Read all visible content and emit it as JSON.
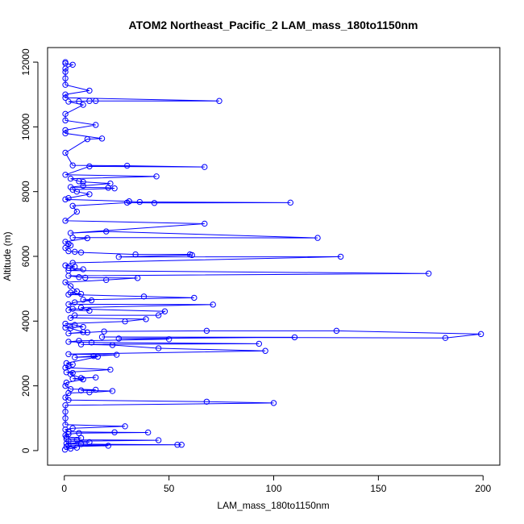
{
  "chart_data": {
    "type": "line",
    "title": "ATOM2 Northeast_Pacific_2 LAM_mass_180to1150nm",
    "xlabel": "LAM_mass_180to1150nm",
    "ylabel": "Altitude (m)",
    "xlim": [
      -8,
      208
    ],
    "ylim": [
      -450,
      12450
    ],
    "x_ticks": [
      0,
      50,
      100,
      150,
      200
    ],
    "x_tick_labels": [
      "0",
      "50",
      "100",
      "150",
      "200"
    ],
    "y_ticks": [
      0,
      2000,
      4000,
      6000,
      8000,
      10000,
      12000
    ],
    "y_tick_labels": [
      "0",
      "2000",
      "4000",
      "6000",
      "8000",
      "10000",
      "12000"
    ],
    "grid": false,
    "legend": "none",
    "colors": {
      "series": "#0000ff",
      "axis": "#000000"
    },
    "marker": "open-circle",
    "series": [
      {
        "name": "",
        "points": [
          [
            0.3,
            30
          ],
          [
            3,
            60
          ],
          [
            6,
            90
          ],
          [
            1,
            120
          ],
          [
            21,
            150
          ],
          [
            2,
            170
          ],
          [
            54,
            180
          ],
          [
            56,
            180
          ],
          [
            8,
            200
          ],
          [
            1,
            220
          ],
          [
            12,
            260
          ],
          [
            2,
            290
          ],
          [
            45,
            320
          ],
          [
            6,
            330
          ],
          [
            1,
            360
          ],
          [
            8,
            390
          ],
          [
            1,
            420
          ],
          [
            0.5,
            470
          ],
          [
            2,
            510
          ],
          [
            7,
            540
          ],
          [
            40,
            560
          ],
          [
            24,
            565
          ],
          [
            2,
            580
          ],
          [
            0.5,
            650
          ],
          [
            4,
            690
          ],
          [
            29,
            750
          ],
          [
            0.5,
            800
          ],
          [
            0.5,
            1000
          ],
          [
            0.5,
            1200
          ],
          [
            0.5,
            1400
          ],
          [
            100,
            1470
          ],
          [
            68,
            1510
          ],
          [
            2,
            1560
          ],
          [
            0.5,
            1640
          ],
          [
            2,
            1780
          ],
          [
            12,
            1800
          ],
          [
            23,
            1840
          ],
          [
            8,
            1860
          ],
          [
            15,
            1880
          ],
          [
            3,
            1900
          ],
          [
            0.5,
            2000
          ],
          [
            1,
            2100
          ],
          [
            9,
            2200
          ],
          [
            4,
            2220
          ],
          [
            15,
            2260
          ],
          [
            8,
            2240
          ],
          [
            3,
            2360
          ],
          [
            4,
            2400
          ],
          [
            1,
            2420
          ],
          [
            22,
            2500
          ],
          [
            0.5,
            2560
          ],
          [
            2,
            2600
          ],
          [
            4,
            2660
          ],
          [
            1,
            2700
          ],
          [
            16,
            2900
          ],
          [
            5,
            2880
          ],
          [
            14,
            2920
          ],
          [
            25,
            2960
          ],
          [
            2,
            2980
          ],
          [
            96,
            3080
          ],
          [
            45,
            3160
          ],
          [
            23,
            3260
          ],
          [
            8,
            3280
          ],
          [
            93,
            3300
          ],
          [
            13,
            3340
          ],
          [
            2,
            3360
          ],
          [
            7,
            3390
          ],
          [
            50,
            3440
          ],
          [
            26,
            3460
          ],
          [
            110,
            3500
          ],
          [
            18,
            3510
          ],
          [
            182,
            3480
          ],
          [
            199,
            3600
          ],
          [
            130,
            3700
          ],
          [
            68,
            3700
          ],
          [
            19,
            3680
          ],
          [
            11,
            3650
          ],
          [
            2,
            3620
          ],
          [
            9,
            3660
          ],
          [
            3,
            3780
          ],
          [
            0.5,
            3800
          ],
          [
            9,
            3820
          ],
          [
            5,
            3880
          ],
          [
            0.5,
            3920
          ],
          [
            29,
            3990
          ],
          [
            39,
            4060
          ],
          [
            3,
            4100
          ],
          [
            5,
            4180
          ],
          [
            45,
            4180
          ],
          [
            48,
            4300
          ],
          [
            4,
            4380
          ],
          [
            2,
            4340
          ],
          [
            12,
            4320
          ],
          [
            8,
            4420
          ],
          [
            71,
            4510
          ],
          [
            2,
            4520
          ],
          [
            5,
            4580
          ],
          [
            13,
            4640
          ],
          [
            9,
            4660
          ],
          [
            62,
            4720
          ],
          [
            38,
            4760
          ],
          [
            2,
            4820
          ],
          [
            8,
            4840
          ],
          [
            3,
            4880
          ],
          [
            6,
            4920
          ],
          [
            3,
            5080
          ],
          [
            0.5,
            5200
          ],
          [
            20,
            5270
          ],
          [
            35,
            5330
          ],
          [
            10,
            5340
          ],
          [
            7,
            5360
          ],
          [
            2,
            5400
          ],
          [
            174,
            5470
          ],
          [
            2,
            5560
          ],
          [
            9,
            5600
          ],
          [
            2,
            5640
          ],
          [
            5,
            5680
          ],
          [
            0.5,
            5720
          ],
          [
            4,
            5800
          ],
          [
            132,
            5990
          ],
          [
            26,
            5980
          ],
          [
            61,
            6040
          ],
          [
            60,
            6060
          ],
          [
            34,
            6060
          ],
          [
            8,
            6120
          ],
          [
            5,
            6140
          ],
          [
            2,
            6160
          ],
          [
            0.5,
            6260
          ],
          [
            3,
            6340
          ],
          [
            2,
            6380
          ],
          [
            0.5,
            6450
          ],
          [
            11,
            6560
          ],
          [
            4,
            6580
          ],
          [
            121,
            6570
          ],
          [
            20,
            6770
          ],
          [
            3,
            6720
          ],
          [
            67,
            7010
          ],
          [
            0.5,
            7100
          ],
          [
            6,
            7380
          ],
          [
            4,
            7560
          ],
          [
            30,
            7660
          ],
          [
            43,
            7650
          ],
          [
            108,
            7660
          ],
          [
            36,
            7680
          ],
          [
            31,
            7700
          ],
          [
            0.5,
            7760
          ],
          [
            2,
            7800
          ],
          [
            12,
            7920
          ],
          [
            6,
            8000
          ],
          [
            4,
            8060
          ],
          [
            24,
            8100
          ],
          [
            21,
            8120
          ],
          [
            3,
            8140
          ],
          [
            9,
            8180
          ],
          [
            22,
            8250
          ],
          [
            9,
            8300
          ],
          [
            7,
            8320
          ],
          [
            3,
            8400
          ],
          [
            44,
            8470
          ],
          [
            0.5,
            8520
          ],
          [
            12,
            8780
          ],
          [
            67,
            8760
          ],
          [
            30,
            8800
          ],
          [
            4,
            8810
          ],
          [
            0.5,
            9200
          ],
          [
            11,
            9620
          ],
          [
            18,
            9640
          ],
          [
            0.5,
            9800
          ],
          [
            0.5,
            9900
          ],
          [
            15,
            10060
          ],
          [
            0.5,
            10200
          ],
          [
            0.5,
            10400
          ],
          [
            9,
            10680
          ],
          [
            2,
            10780
          ],
          [
            7,
            10790
          ],
          [
            12,
            10800
          ],
          [
            15,
            10800
          ],
          [
            74,
            10800
          ],
          [
            0.5,
            10900
          ],
          [
            0.5,
            11000
          ],
          [
            12,
            11120
          ],
          [
            0.5,
            11300
          ],
          [
            0.5,
            11500
          ],
          [
            0.5,
            11700
          ],
          [
            0.5,
            11800
          ],
          [
            4,
            11920
          ],
          [
            0.5,
            11960
          ],
          [
            0.5,
            12000
          ]
        ]
      }
    ]
  }
}
